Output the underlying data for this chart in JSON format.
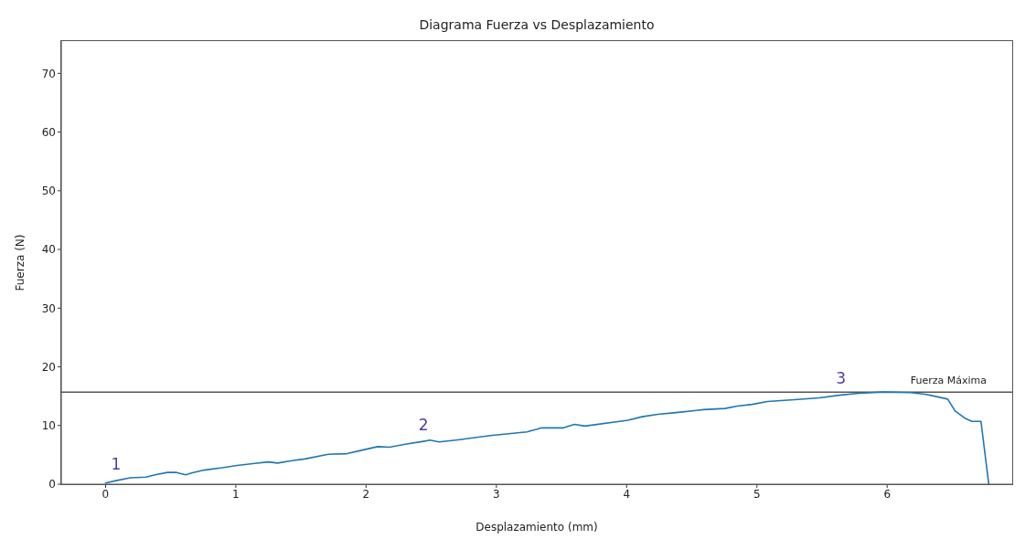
{
  "chart_data": {
    "type": "line",
    "title": "Diagrama Fuerza vs Desplazamiento",
    "xlabel": "Desplazamiento (mm)",
    "ylabel": "Fuerza (N)",
    "x": [
      0,
      0.08,
      0.19,
      0.31,
      0.38,
      0.475,
      0.545,
      0.615,
      0.66,
      0.755,
      0.895,
      1.01,
      1.13,
      1.25,
      1.32,
      1.43,
      1.53,
      1.71,
      1.855,
      1.95,
      2.09,
      2.18,
      2.3,
      2.44,
      2.49,
      2.56,
      2.72,
      2.955,
      3.235,
      3.35,
      3.515,
      3.6,
      3.68,
      4.01,
      4.12,
      4.24,
      4.38,
      4.59,
      4.755,
      4.85,
      4.965,
      5.08,
      5.29,
      5.48,
      5.645,
      5.785,
      5.97,
      6.18,
      6.3,
      6.465,
      6.52,
      6.6,
      6.65,
      6.72,
      6.78
    ],
    "values": [
      0.2,
      0.6,
      1.1,
      1.2,
      1.6,
      2.0,
      2.0,
      1.6,
      1.9,
      2.4,
      2.8,
      3.2,
      3.5,
      3.8,
      3.6,
      4.0,
      4.3,
      5.1,
      5.2,
      5.7,
      6.4,
      6.3,
      6.8,
      7.3,
      7.5,
      7.2,
      7.6,
      8.3,
      8.9,
      9.6,
      9.6,
      10.2,
      9.9,
      10.9,
      11.5,
      11.9,
      12.2,
      12.7,
      12.9,
      13.3,
      13.6,
      14.1,
      14.4,
      14.7,
      15.2,
      15.5,
      15.7,
      15.6,
      15.3,
      14.5,
      12.5,
      11.2,
      10.7,
      10.7,
      0
    ],
    "color": "#1f77b4",
    "line_style": "solid",
    "xlim": [
      -0.34,
      6.96
    ],
    "xticks": [
      0,
      1,
      2,
      3,
      4,
      5,
      6
    ],
    "ylim": [
      0,
      75.5
    ],
    "yticks": [
      0,
      10,
      20,
      30,
      40,
      50,
      60,
      70
    ],
    "ref_lines": [
      {
        "axis": "y",
        "value": 15.7,
        "label": "Fuerza Máxima",
        "color": "#555555"
      }
    ],
    "annotations": [
      {
        "text": "1",
        "x": 0.08,
        "y": 0.6
      },
      {
        "text": "2",
        "x": 2.44,
        "y": 7.3
      },
      {
        "text": "3",
        "x": 5.645,
        "y": 15.2
      }
    ]
  }
}
